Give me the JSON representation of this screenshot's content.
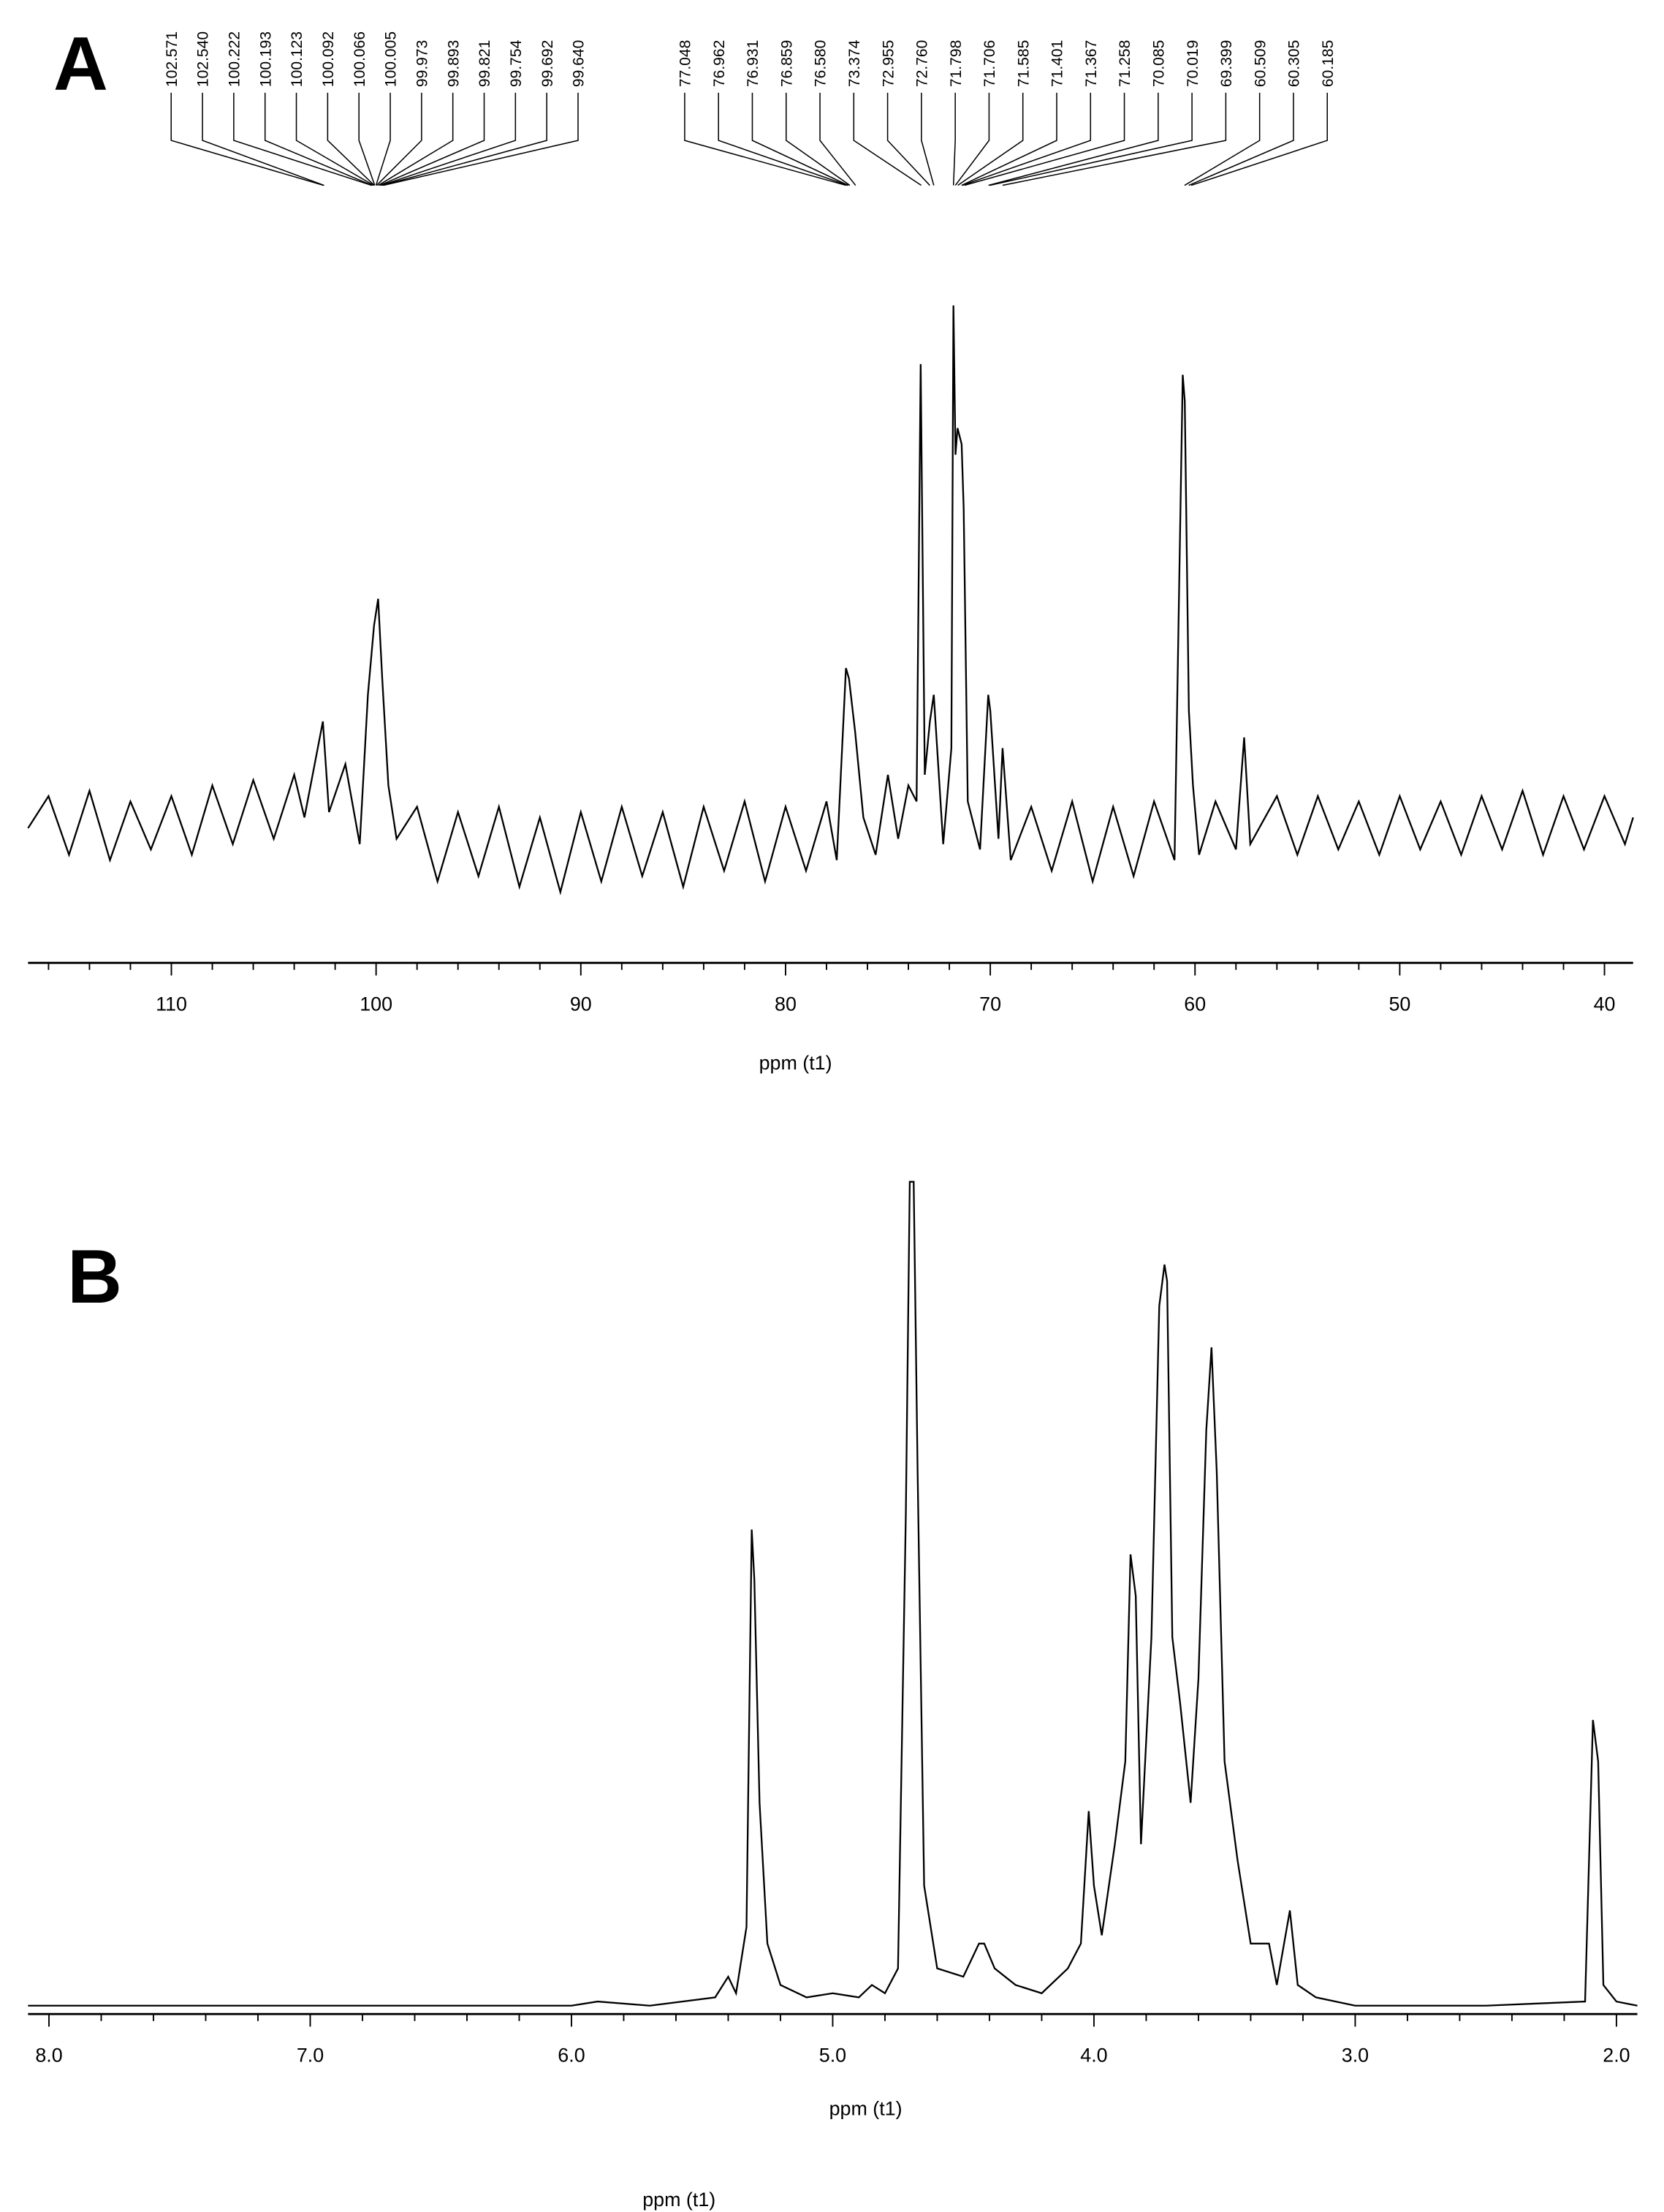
{
  "chart_data": [
    {
      "type": "line",
      "title": "A",
      "xlabel": "ppm (t1)",
      "color": "#000000",
      "xlim": [
        117,
        38.6
      ],
      "ylim": [
        -15,
        100
      ],
      "xticks": [
        110,
        100,
        90,
        80,
        70,
        60,
        50,
        40
      ],
      "xminorticks": [
        116,
        114,
        112,
        108,
        106,
        104,
        102,
        98,
        96,
        94,
        92,
        88,
        86,
        84,
        82,
        78,
        76,
        74,
        72,
        68,
        66,
        64,
        62,
        58,
        56,
        54,
        52,
        48,
        46,
        44,
        42
      ],
      "peaks": [
        102.571,
        102.54,
        100.222,
        100.193,
        100.123,
        100.092,
        100.066,
        100.005,
        99.973,
        99.893,
        99.821,
        99.754,
        99.692,
        99.64,
        77.048,
        76.962,
        76.931,
        76.859,
        76.58,
        73.374,
        72.955,
        72.76,
        71.798,
        71.706,
        71.585,
        71.401,
        71.367,
        71.258,
        70.085,
        70.019,
        69.399,
        60.509,
        60.305,
        60.185
      ],
      "peak_labels": [
        "102.571",
        "102.540",
        "100.222",
        "100.193",
        "100.123",
        "100.092",
        "100.066",
        "100.005",
        "99.973",
        "99.893",
        "99.821",
        "99.754",
        "99.692",
        "99.640",
        "77.048",
        "76.962",
        "76.931",
        "76.859",
        "76.580",
        "73.374",
        "72.955",
        "72.760",
        "71.798",
        "71.706",
        "71.585",
        "71.401",
        "71.367",
        "71.258",
        "70.085",
        "70.019",
        "69.399",
        "60.509",
        "60.305",
        "60.185"
      ],
      "x": [
        117,
        116,
        115,
        114,
        113,
        112,
        111,
        110,
        109,
        108,
        107,
        106,
        105,
        104,
        103.5,
        102.6,
        102.3,
        101.5,
        100.8,
        100.4,
        100.1,
        99.9,
        99.7,
        99.4,
        99,
        98,
        97,
        96,
        95,
        94,
        93,
        92,
        91,
        90,
        89,
        88,
        87,
        86,
        85,
        84,
        83,
        82,
        81,
        80,
        79,
        78,
        77.5,
        77.05,
        76.9,
        76.6,
        76.2,
        75.6,
        75,
        74.5,
        74,
        73.6,
        73.4,
        73.2,
        72.95,
        72.76,
        72.3,
        71.9,
        71.8,
        71.7,
        71.6,
        71.4,
        71.3,
        71.1,
        70.5,
        70.1,
        70,
        69.6,
        69.4,
        69,
        68,
        67,
        66,
        65,
        64,
        63,
        62,
        61,
        60.6,
        60.5,
        60.3,
        60.1,
        59.8,
        59,
        58,
        57.6,
        57.3,
        56,
        55,
        54,
        53,
        52,
        51,
        50,
        49,
        48,
        47,
        46,
        45,
        44,
        43,
        42,
        41,
        40,
        39,
        38.6
      ],
      "values": [
        0,
        6,
        -5,
        7,
        -6,
        5,
        -4,
        6,
        -5,
        8,
        -3,
        9,
        -2,
        10,
        2,
        20,
        3,
        12,
        -3,
        25,
        38,
        43,
        28,
        8,
        -2,
        4,
        -10,
        3,
        -9,
        4,
        -11,
        2,
        -12,
        3,
        -10,
        4,
        -9,
        3,
        -11,
        4,
        -8,
        5,
        -10,
        4,
        -8,
        5,
        -6,
        30,
        28,
        18,
        2,
        -5,
        10,
        -2,
        8,
        5,
        87,
        10,
        20,
        25,
        -3,
        15,
        98,
        70,
        75,
        72,
        60,
        5,
        -4,
        25,
        22,
        -2,
        15,
        -6,
        4,
        -8,
        5,
        -10,
        4,
        -9,
        5,
        -6,
        85,
        80,
        22,
        8,
        -5,
        5,
        -4,
        17,
        -3,
        6,
        -5,
        6,
        -4,
        5,
        -5,
        6,
        -4,
        5,
        -5,
        6,
        -4,
        7,
        -5,
        6,
        -4,
        6,
        -3,
        2
      ]
    },
    {
      "type": "line",
      "title": "B",
      "xlabel": "ppm (t1)",
      "extra_label": "ppm (t1)",
      "color": "#000000",
      "xlim": [
        8.08,
        1.92
      ],
      "ylim": [
        0,
        100
      ],
      "xticks": [
        {
          "value": 8,
          "label": "8.0"
        },
        {
          "value": 7,
          "label": "7.0"
        },
        {
          "value": 6,
          "label": "6.0"
        },
        {
          "value": 5,
          "label": "5.0"
        },
        {
          "value": 4,
          "label": "4.0"
        },
        {
          "value": 3,
          "label": "3.0"
        },
        {
          "value": 2,
          "label": "2.0"
        }
      ],
      "xminorticks": [
        7.8,
        7.6,
        7.4,
        7.2,
        6.8,
        6.6,
        6.4,
        6.2,
        5.8,
        5.6,
        5.4,
        5.2,
        4.8,
        4.6,
        4.4,
        4.2,
        3.8,
        3.6,
        3.4,
        3.2,
        2.8,
        2.6,
        2.4,
        2.2
      ],
      "x": [
        8.08,
        7,
        6,
        5.9,
        5.7,
        5.45,
        5.4,
        5.37,
        5.33,
        5.31,
        5.3,
        5.28,
        5.25,
        5.2,
        5.1,
        5,
        4.9,
        4.85,
        4.8,
        4.75,
        4.72,
        4.705,
        4.69,
        4.675,
        4.65,
        4.6,
        4.5,
        4.44,
        4.42,
        4.38,
        4.3,
        4.2,
        4.1,
        4.05,
        4.02,
        4,
        3.97,
        3.92,
        3.88,
        3.86,
        3.84,
        3.82,
        3.78,
        3.75,
        3.73,
        3.72,
        3.7,
        3.67,
        3.63,
        3.6,
        3.57,
        3.55,
        3.53,
        3.5,
        3.45,
        3.4,
        3.33,
        3.3,
        3.25,
        3.22,
        3.15,
        3,
        2.5,
        2.12,
        2.09,
        2.07,
        2.05,
        2,
        1.92
      ],
      "values": [
        0.5,
        0.5,
        0.5,
        1,
        0.5,
        1.5,
        4,
        2,
        10,
        58,
        52,
        25,
        8,
        3,
        1.5,
        2,
        1.5,
        3,
        2,
        5,
        60,
        100,
        100,
        65,
        15,
        5,
        4,
        8,
        8,
        5,
        3,
        2,
        5,
        8,
        24,
        15,
        9,
        20,
        30,
        55,
        50,
        20,
        45,
        85,
        90,
        88,
        45,
        37,
        25,
        40,
        70,
        80,
        65,
        30,
        18,
        8,
        8,
        3,
        12,
        3,
        1.5,
        0.5,
        0.5,
        1,
        35,
        30,
        3,
        1,
        0.5
      ]
    }
  ]
}
